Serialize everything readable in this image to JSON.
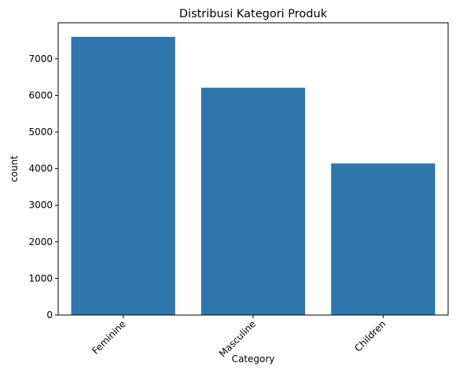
{
  "chart_data": {
    "type": "bar",
    "title": "Distribusi Kategori Produk",
    "xlabel": "Category",
    "ylabel": "count",
    "categories": [
      "Feminine",
      "Masculine",
      "Children"
    ],
    "values": [
      7600,
      6210,
      4140
    ],
    "yticks": [
      0,
      1000,
      2000,
      3000,
      4000,
      5000,
      6000,
      7000
    ],
    "ylim": [
      0,
      8000
    ],
    "grid": false,
    "legend": "none",
    "bar_color": "#2e76ab",
    "xtick_rotation": 45
  }
}
